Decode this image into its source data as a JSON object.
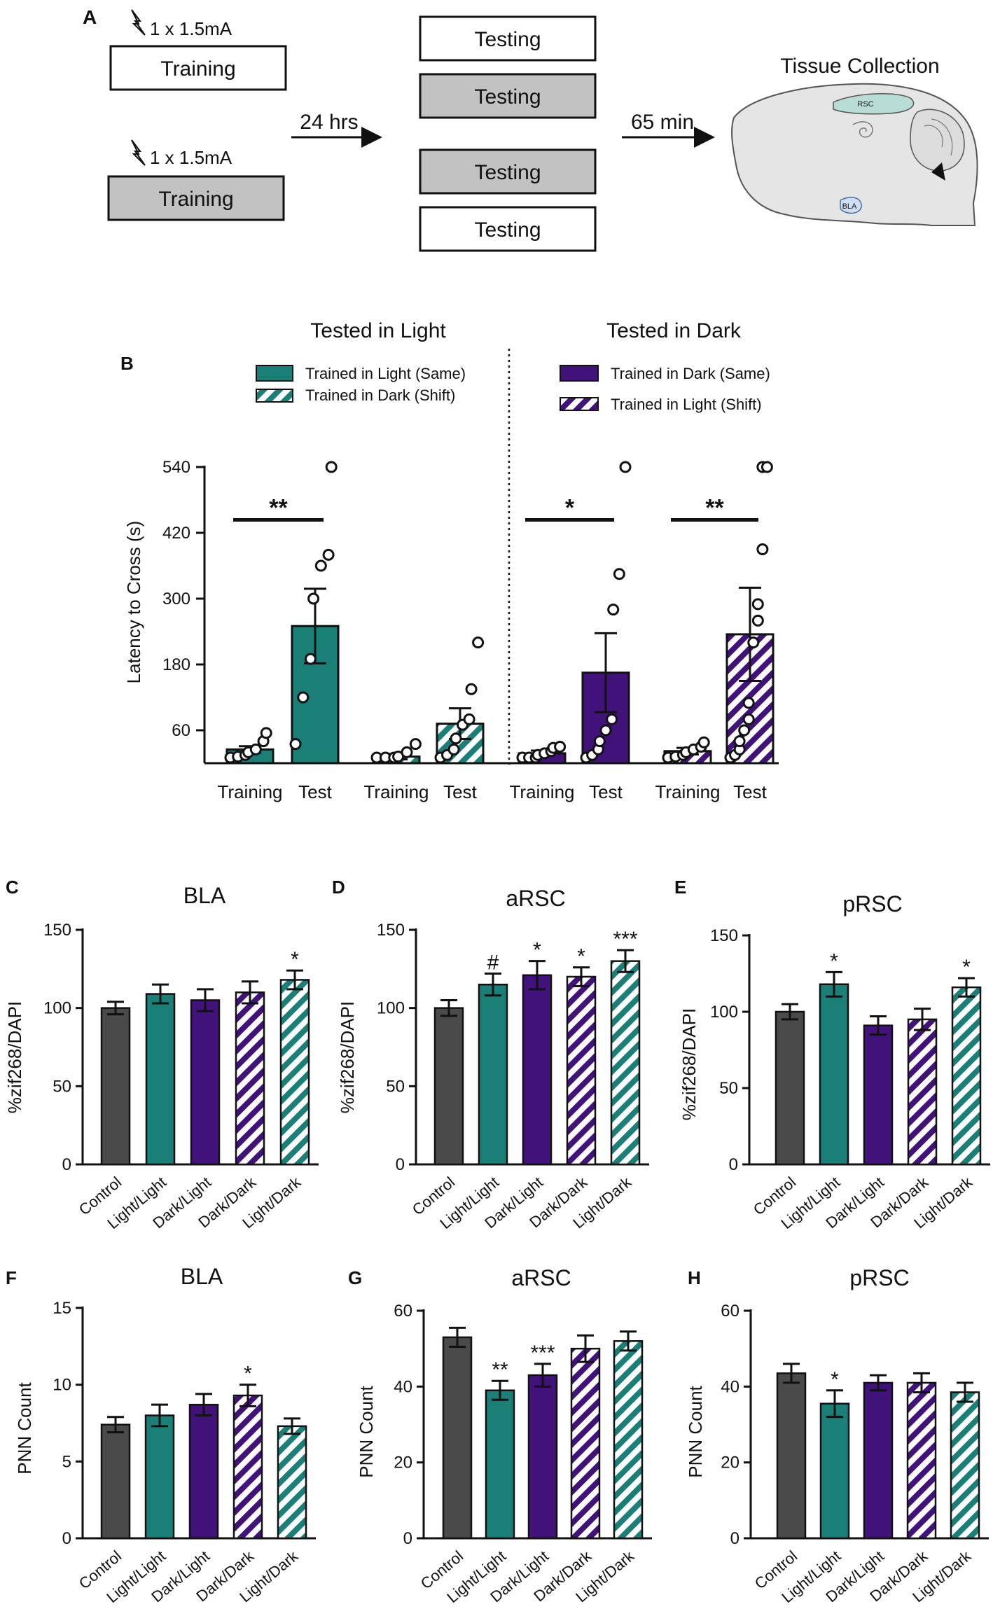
{
  "colors": {
    "teal": "#1a7f77",
    "purple": "#41137a",
    "gray": "#4a4a4a",
    "white": "#ffffff",
    "light_gray_box": "#c2c2c2",
    "brain_fill": "#e5e5e5",
    "rsc_fill": "#b8ddd6",
    "bla_fill": "#cfe0f3"
  },
  "panel_a": {
    "letter": "A",
    "shock1": "1 x 1.5mA",
    "shock2": "1 x 1.5mA",
    "training1": "Training",
    "training2": "Training",
    "delay1": "24 hrs",
    "testing1": "Testing",
    "testing2": "Testing",
    "testing3": "Testing",
    "testing4": "Testing",
    "delay2": "65 min",
    "tissue_title": "Tissue Collection",
    "rsc_label": "RSC",
    "bla_label": "BLA"
  },
  "chart_data": [
    {
      "panel": "B",
      "type": "bar",
      "ylabel": "Latency to Cross (s)",
      "ylim": [
        0,
        540
      ],
      "yticks": [
        60,
        180,
        300,
        420,
        540
      ],
      "group_titles": [
        "Tested in Light",
        "Tested in Dark"
      ],
      "legend": [
        {
          "label": "Trained in Light (Same)",
          "fill": "teal",
          "hatch": false
        },
        {
          "label": "Trained in Dark (Shift)",
          "fill": "teal",
          "hatch": true
        },
        {
          "label": "Trained in Dark (Same)",
          "fill": "purple",
          "hatch": false
        },
        {
          "label": "Trained in Light (Shift)",
          "fill": "purple",
          "hatch": true
        }
      ],
      "categories": [
        "Training",
        "Test",
        "Training",
        "Test",
        "Training",
        "Test",
        "Training",
        "Test"
      ],
      "bars": [
        {
          "value": 25,
          "err": 6,
          "fill": "teal",
          "hatch": false,
          "points": [
            8,
            12,
            15,
            20,
            25,
            40,
            55
          ]
        },
        {
          "value": 250,
          "err": 68,
          "fill": "teal",
          "hatch": false,
          "points": [
            35,
            120,
            190,
            300,
            360,
            380,
            540
          ]
        },
        {
          "value": 12,
          "err": 5,
          "fill": "teal",
          "hatch": true,
          "points": [
            5,
            8,
            10,
            12,
            20,
            35
          ]
        },
        {
          "value": 72,
          "err": 28,
          "fill": "teal",
          "hatch": true,
          "points": [
            10,
            15,
            25,
            45,
            70,
            80,
            135,
            220
          ]
        },
        {
          "value": 18,
          "err": 5,
          "fill": "purple",
          "hatch": false,
          "points": [
            5,
            8,
            10,
            15,
            18,
            22,
            28,
            30
          ]
        },
        {
          "value": 165,
          "err": 72,
          "fill": "purple",
          "hatch": false,
          "points": [
            10,
            15,
            25,
            40,
            60,
            80,
            280,
            345,
            540
          ]
        },
        {
          "value": 22,
          "err": 6,
          "fill": "purple",
          "hatch": true,
          "points": [
            8,
            12,
            15,
            20,
            25,
            30,
            38
          ]
        },
        {
          "value": 235,
          "err": 85,
          "fill": "purple",
          "hatch": true,
          "points": [
            10,
            15,
            25,
            40,
            60,
            80,
            110,
            220,
            260,
            290,
            390,
            540,
            540
          ]
        }
      ],
      "significance": [
        {
          "label": "**",
          "from": 0,
          "to": 1,
          "y": 450
        },
        {
          "label": "*",
          "from": 4,
          "to": 5,
          "y": 450
        },
        {
          "label": "**",
          "from": 6,
          "to": 7,
          "y": 450
        }
      ]
    },
    {
      "panel": "C",
      "type": "bar",
      "title": "BLA",
      "ylabel": "%zif268/DAPI",
      "ylim": [
        0,
        150
      ],
      "yticks": [
        0,
        50,
        100,
        150
      ],
      "categories": [
        "Control",
        "Light/Light",
        "Dark/Light",
        "Dark/Dark",
        "Light/Dark"
      ],
      "values": [
        100,
        109,
        105,
        110,
        118
      ],
      "errors": [
        4,
        6,
        7,
        7,
        6
      ],
      "marks": [
        "",
        "",
        "",
        "",
        "*"
      ]
    },
    {
      "panel": "D",
      "type": "bar",
      "title": "aRSC",
      "ylabel": "%zif268/DAPI",
      "ylim": [
        0,
        150
      ],
      "yticks": [
        0,
        50,
        100,
        150
      ],
      "categories": [
        "Control",
        "Light/Light",
        "Dark/Light",
        "Dark/Dark",
        "Light/Dark"
      ],
      "values": [
        100,
        115,
        121,
        120,
        130
      ],
      "errors": [
        5,
        7,
        9,
        6,
        7
      ],
      "marks": [
        "",
        "#",
        "*",
        "*",
        "***"
      ]
    },
    {
      "panel": "E",
      "type": "bar",
      "title": "pRSC",
      "ylabel": "%zif268/DAPI",
      "ylim": [
        0,
        150
      ],
      "yticks": [
        0,
        50,
        100,
        150
      ],
      "categories": [
        "Control",
        "Light/Light",
        "Dark/Light",
        "Dark/Dark",
        "Light/Dark"
      ],
      "values": [
        100,
        118,
        91,
        95,
        116
      ],
      "errors": [
        5,
        8,
        6,
        7,
        6
      ],
      "marks": [
        "",
        "*",
        "",
        "",
        "*"
      ]
    },
    {
      "panel": "F",
      "type": "bar",
      "title": "BLA",
      "ylabel": "PNN Count",
      "ylim": [
        0,
        15
      ],
      "yticks": [
        0,
        5,
        10,
        15
      ],
      "categories": [
        "Control",
        "Light/Light",
        "Dark/Light",
        "Dark/Dark",
        "Light/Dark"
      ],
      "values": [
        7.4,
        8.0,
        8.7,
        9.3,
        7.3
      ],
      "errors": [
        0.5,
        0.7,
        0.7,
        0.7,
        0.5
      ],
      "marks": [
        "",
        "",
        "",
        "*",
        ""
      ]
    },
    {
      "panel": "G",
      "type": "bar",
      "title": "aRSC",
      "ylabel": "PNN Count",
      "ylim": [
        0,
        60
      ],
      "yticks": [
        0,
        20,
        40,
        60
      ],
      "categories": [
        "Control",
        "Light/Light",
        "Dark/Light",
        "Dark/Dark",
        "Light/Dark"
      ],
      "values": [
        53,
        39,
        43,
        50,
        52
      ],
      "errors": [
        2.5,
        2.5,
        3,
        3.5,
        2.5
      ],
      "marks": [
        "",
        "**",
        "***",
        "",
        ""
      ]
    },
    {
      "panel": "H",
      "type": "bar",
      "title": "pRSC",
      "ylabel": "PNN Count",
      "ylim": [
        0,
        60
      ],
      "yticks": [
        0,
        20,
        40,
        60
      ],
      "categories": [
        "Control",
        "Light/Light",
        "Dark/Light",
        "Dark/Dark",
        "Light/Dark"
      ],
      "values": [
        43.5,
        35.5,
        41,
        41,
        38.5
      ],
      "errors": [
        2.5,
        3.5,
        2,
        2.5,
        2.5
      ],
      "marks": [
        "",
        "*",
        "",
        "",
        ""
      ]
    }
  ]
}
